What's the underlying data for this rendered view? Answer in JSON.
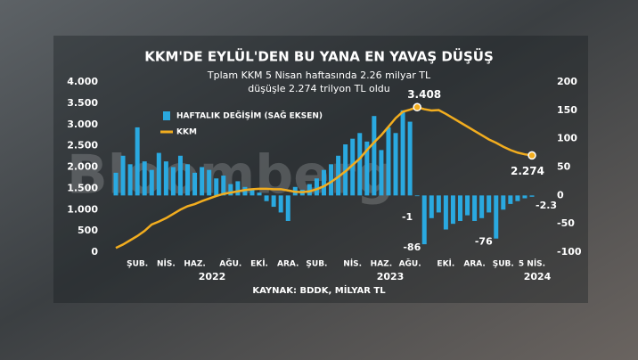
{
  "chart_data": {
    "type": "combo",
    "title": "KKM'DE EYLÜL'DEN BU YANA EN YAVAŞ DÜŞÜŞ",
    "subtitle": [
      "Tplam KKM 5 Nisan haftasında 2.26 milyar TL",
      "düşüşle 2.274 trilyon TL oldu"
    ],
    "source": "KAYNAK: BDDK, MİLYAR TL",
    "watermark": "Bloomberg",
    "years": [
      "2022",
      "2023",
      "2024"
    ],
    "categories": [
      null,
      null,
      null,
      "ŞUB.",
      null,
      null,
      null,
      "NİS.",
      null,
      null,
      null,
      "HAZ.",
      null,
      null,
      null,
      null,
      "AĞU.",
      null,
      null,
      null,
      "EKİ.",
      null,
      null,
      null,
      "ARA.",
      null,
      null,
      null,
      "ŞUB.",
      null,
      null,
      null,
      null,
      "NİS.",
      null,
      null,
      null,
      "HAZ.",
      null,
      null,
      null,
      "AĞU.",
      null,
      null,
      null,
      null,
      "EKİ.",
      null,
      null,
      null,
      "ARA.",
      null,
      null,
      null,
      "ŞUB.",
      null,
      null,
      null,
      "5 NİS."
    ],
    "series": [
      {
        "name": "HAFTALIK DEĞİŞİM (SAĞ EKSEN)",
        "type": "bar",
        "axis": "y2",
        "color": "#2aa9e0",
        "values": [
          40,
          70,
          55,
          120,
          60,
          45,
          75,
          60,
          50,
          70,
          55,
          40,
          50,
          45,
          30,
          35,
          20,
          25,
          15,
          10,
          5,
          -10,
          -20,
          -30,
          -45,
          15,
          10,
          20,
          30,
          45,
          55,
          70,
          90,
          100,
          110,
          95,
          140,
          80,
          120,
          110,
          150,
          130,
          -1,
          -86,
          -40,
          -30,
          -60,
          -50,
          -45,
          -35,
          -45,
          -40,
          -30,
          -76,
          -25,
          -15,
          -10,
          -5,
          -2.3
        ],
        "value_labels": [
          null,
          null,
          null,
          null,
          null,
          null,
          null,
          null,
          null,
          null,
          null,
          null,
          null,
          null,
          null,
          null,
          null,
          null,
          null,
          null,
          null,
          null,
          null,
          null,
          null,
          null,
          null,
          null,
          null,
          null,
          null,
          null,
          null,
          null,
          null,
          null,
          null,
          null,
          null,
          null,
          null,
          null,
          "-1",
          "-86",
          null,
          null,
          null,
          null,
          null,
          null,
          null,
          null,
          null,
          "-76",
          null,
          null,
          null,
          null,
          "-2.3"
        ]
      },
      {
        "name": "KKM",
        "type": "line",
        "color": "#f2ad1f",
        "values": [
          100,
          180,
          280,
          380,
          500,
          650,
          720,
          800,
          900,
          1000,
          1080,
          1130,
          1200,
          1260,
          1320,
          1370,
          1400,
          1430,
          1460,
          1480,
          1490,
          1490,
          1480,
          1480,
          1450,
          1420,
          1410,
          1430,
          1480,
          1550,
          1650,
          1770,
          1900,
          2050,
          2200,
          2400,
          2580,
          2750,
          2950,
          3150,
          3300,
          3350,
          3408,
          3360,
          3330,
          3340,
          3250,
          3150,
          3050,
          2950,
          2850,
          2750,
          2650,
          2570,
          2480,
          2400,
          2340,
          2300,
          2274
        ],
        "value_labels": [
          null,
          null,
          null,
          null,
          null,
          null,
          null,
          null,
          null,
          null,
          null,
          null,
          null,
          null,
          null,
          null,
          null,
          null,
          null,
          null,
          null,
          null,
          null,
          null,
          null,
          null,
          null,
          null,
          null,
          null,
          null,
          null,
          null,
          null,
          null,
          null,
          null,
          null,
          null,
          null,
          null,
          null,
          "3.408",
          null,
          null,
          null,
          null,
          null,
          null,
          null,
          null,
          null,
          null,
          null,
          null,
          null,
          null,
          null,
          "2.274"
        ]
      }
    ],
    "ylim": [
      0,
      4000
    ],
    "yticks": [
      0,
      500,
      {
        "value": 1000,
        "label": "1.000"
      },
      {
        "value": 1500,
        "label": "1.500"
      },
      {
        "value": 2000,
        "label": "2.000"
      },
      {
        "value": 2500,
        "label": "2.500"
      },
      {
        "value": 3000,
        "label": "3.000"
      },
      {
        "value": 3500,
        "label": "3.500"
      },
      {
        "value": 4000,
        "label": "4.000"
      }
    ],
    "y2lim": [
      -100,
      200
    ],
    "y2ticks": [
      -100,
      -50,
      0,
      50,
      100,
      150,
      200
    ],
    "grid": false
  }
}
